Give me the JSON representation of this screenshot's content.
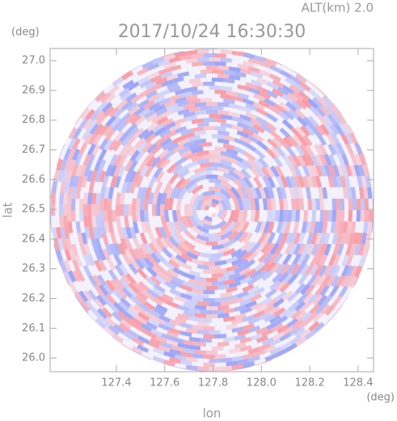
{
  "chart_data": {
    "type": "radar-field",
    "title": "2017/10/24 16:30:30",
    "altitude_label": "ALT(km) 2.0",
    "y_unit": "(deg)",
    "x_unit": "(deg)",
    "x_label": "lon",
    "y_label": "lat",
    "xlim": [
      127.126,
      128.464
    ],
    "ylim": [
      25.954,
      27.041
    ],
    "xticks": [
      127.4,
      127.6,
      127.8,
      {
        "value": 128.0,
        "label": "128.0"
      },
      128.2,
      128.4
    ],
    "yticks": [
      {
        "value": 26.0,
        "label": "26.0"
      },
      26.1,
      26.2,
      26.3,
      26.4,
      26.5,
      26.6,
      26.7,
      26.8,
      26.9,
      {
        "value": 27.0,
        "label": "27.0"
      }
    ]
  }
}
